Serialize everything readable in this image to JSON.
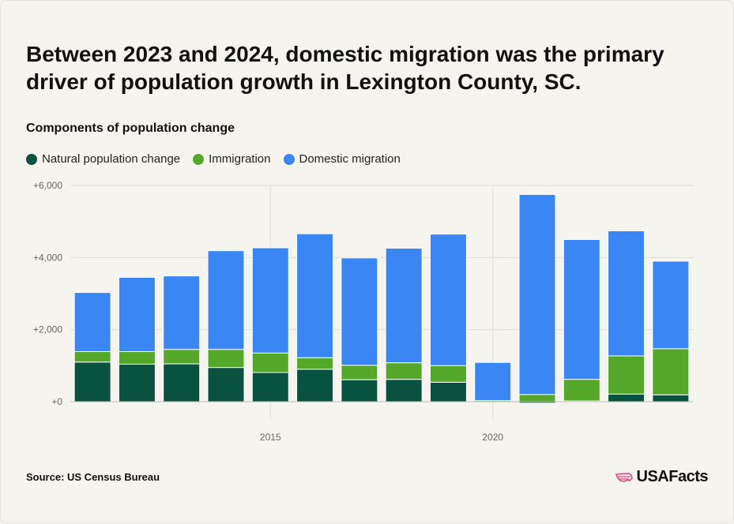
{
  "title": "Between 2023 and 2024, domestic migration was the primary driver of population growth in Lexington County, SC.",
  "subtitle": "Components of population change",
  "source": "Source: US Census Bureau",
  "brand": "USAFacts",
  "colors": {
    "natural": "#0a5240",
    "immigration": "#53a82a",
    "domestic": "#3b86f5",
    "grid": "#dddcd4",
    "axis_text": "#666666",
    "brand_accent": "#e0467c"
  },
  "chart_data": {
    "type": "bar",
    "stacked": true,
    "x": [
      2011,
      2012,
      2013,
      2014,
      2015,
      2016,
      2017,
      2018,
      2019,
      2020,
      2021,
      2022,
      2023,
      2024
    ],
    "series": [
      {
        "name": "Natural population change",
        "values": [
          1100,
          1040,
          1050,
          950,
          810,
          900,
          610,
          620,
          540,
          0,
          -40,
          20,
          210,
          190
        ]
      },
      {
        "name": "Immigration",
        "values": [
          290,
          350,
          400,
          500,
          540,
          320,
          400,
          460,
          460,
          30,
          200,
          600,
          1060,
          1280
        ]
      },
      {
        "name": "Domestic migration",
        "values": [
          1640,
          2060,
          2040,
          2740,
          2920,
          3440,
          2980,
          3180,
          3650,
          1060,
          5550,
          3880,
          3470,
          2430
        ]
      }
    ],
    "yticks": [
      {
        "value": 6000,
        "label": "+6,000"
      },
      {
        "value": 4000,
        "label": "+4,000"
      },
      {
        "value": 2000,
        "label": "+2,000"
      },
      {
        "value": 0,
        "label": "+0"
      }
    ],
    "xticks": [
      {
        "value": 2015,
        "label": "2015"
      },
      {
        "value": 2020,
        "label": "2020"
      }
    ],
    "ylim": [
      0,
      6000
    ],
    "legend_position": "top-left",
    "grid": true
  }
}
